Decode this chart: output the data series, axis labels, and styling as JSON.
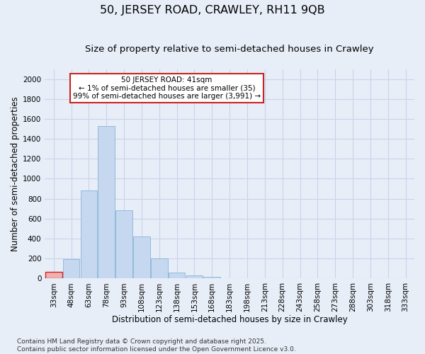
{
  "title_line1": "50, JERSEY ROAD, CRAWLEY, RH11 9QB",
  "title_line2": "Size of property relative to semi-detached houses in Crawley",
  "xlabel": "Distribution of semi-detached houses by size in Crawley",
  "ylabel": "Number of semi-detached properties",
  "footnote": "Contains HM Land Registry data © Crown copyright and database right 2025.\nContains public sector information licensed under the Open Government Licence v3.0.",
  "annotation_title": "50 JERSEY ROAD: 41sqm",
  "annotation_line2": "← 1% of semi-detached houses are smaller (35)",
  "annotation_line3": "99% of semi-detached houses are larger (3,991) →",
  "bar_color": "#c5d8f0",
  "bar_edge_color": "#88b4d8",
  "highlight_color": "#f0b0b0",
  "highlight_edge_color": "#cc2222",
  "annotation_box_color": "#ffffff",
  "annotation_box_edge": "#cc2222",
  "grid_color": "#c8d4e8",
  "background_color": "#e8eef8",
  "categories": [
    "33sqm",
    "48sqm",
    "63sqm",
    "78sqm",
    "93sqm",
    "108sqm",
    "123sqm",
    "138sqm",
    "153sqm",
    "168sqm",
    "183sqm",
    "198sqm",
    "213sqm",
    "228sqm",
    "243sqm",
    "258sqm",
    "273sqm",
    "288sqm",
    "303sqm",
    "318sqm",
    "333sqm"
  ],
  "values": [
    65,
    195,
    880,
    1530,
    685,
    420,
    200,
    60,
    30,
    15,
    5,
    5,
    2,
    0,
    0,
    0,
    0,
    0,
    0,
    0,
    0
  ],
  "highlight_index": 0,
  "ylim": [
    0,
    2100
  ],
  "yticks": [
    0,
    200,
    400,
    600,
    800,
    1000,
    1200,
    1400,
    1600,
    1800,
    2000
  ],
  "title_fontsize": 11.5,
  "subtitle_fontsize": 9.5,
  "axis_label_fontsize": 8.5,
  "tick_fontsize": 7.5,
  "footnote_fontsize": 6.5
}
